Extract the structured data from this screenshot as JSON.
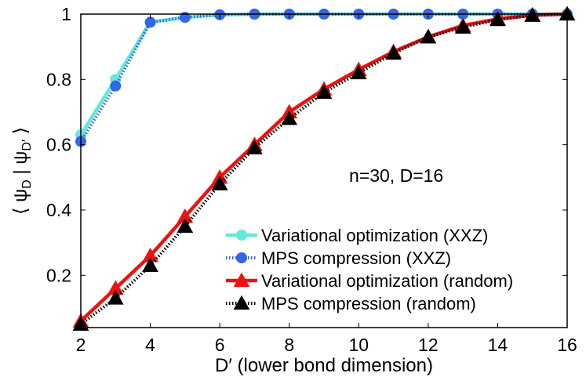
{
  "chart_data": {
    "type": "line",
    "title": "",
    "xlabel": "D′ (lower bond dimension)",
    "ylabel_parts": [
      "⟨ ψ",
      "D",
      " | ψ",
      "D′",
      " ⟩"
    ],
    "xlim": [
      2,
      16
    ],
    "ylim": [
      0.04,
      1.0
    ],
    "xticks": [
      2,
      4,
      6,
      8,
      10,
      12,
      14,
      16
    ],
    "yticks": [
      0.2,
      0.4,
      0.6,
      0.8,
      1
    ],
    "ytick_labels": [
      "0.2",
      "0.4",
      "0.6",
      "0.8",
      "1"
    ],
    "annotation": "n=30, D=16",
    "grid": false,
    "legend_position": "bottom-right",
    "x": [
      2,
      3,
      4,
      5,
      6,
      7,
      8,
      9,
      10,
      11,
      12,
      13,
      14,
      15,
      16
    ],
    "series": [
      {
        "name": "Variational optimization (XXZ)",
        "color": "#66e8d8",
        "line": "solid",
        "marker": "circle",
        "values": [
          0.63,
          0.8,
          0.975,
          0.99,
          0.998,
          1.0,
          1.0,
          1.0,
          1.0,
          1.0,
          1.0,
          1.0,
          1.0,
          1.0,
          1.0
        ]
      },
      {
        "name": "MPS compression (XXZ)",
        "color": "#3366e6",
        "line": "dotted",
        "marker": "circle",
        "values": [
          0.61,
          0.78,
          0.975,
          0.99,
          0.998,
          1.0,
          1.0,
          1.0,
          1.0,
          1.0,
          1.0,
          1.0,
          1.0,
          1.0,
          1.0
        ]
      },
      {
        "name": "Variational optimization (random)",
        "color": "#ee1111",
        "line": "solid",
        "marker": "triangle",
        "values": [
          0.06,
          0.16,
          0.26,
          0.38,
          0.5,
          0.6,
          0.7,
          0.77,
          0.83,
          0.885,
          0.93,
          0.965,
          0.985,
          0.997,
          1.0
        ]
      },
      {
        "name": "MPS compression (random)",
        "color": "#000000",
        "line": "dotted",
        "marker": "triangle",
        "values": [
          0.05,
          0.13,
          0.23,
          0.35,
          0.48,
          0.59,
          0.68,
          0.76,
          0.82,
          0.88,
          0.93,
          0.96,
          0.983,
          0.996,
          1.0
        ]
      }
    ]
  }
}
